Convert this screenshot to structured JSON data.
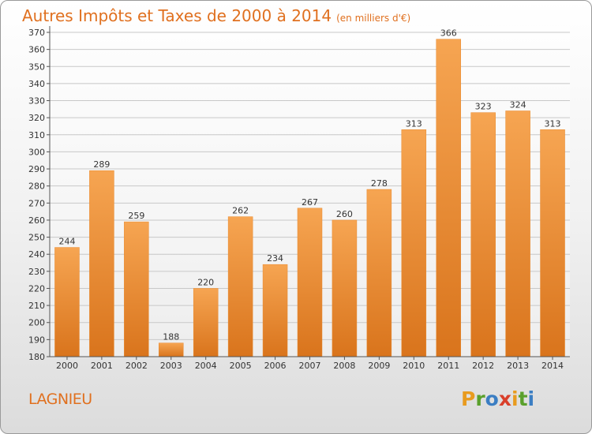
{
  "header": {
    "title": "Autres Impôts et Taxes de 2000 à 2014",
    "subtitle": "(en milliers d'€)"
  },
  "footer": {
    "commune": "LAGNIEU",
    "brand_letters": [
      "P",
      "r",
      "o",
      "x",
      "i",
      "t",
      "i"
    ],
    "brand_colors": [
      "#e89b1f",
      "#5aa02c",
      "#3b7ec3",
      "#d93f2a",
      "#e89b1f",
      "#5aa02c",
      "#3b7ec3"
    ]
  },
  "chart_data": {
    "type": "bar",
    "categories": [
      "2000",
      "2001",
      "2002",
      "2003",
      "2004",
      "2005",
      "2006",
      "2007",
      "2008",
      "2009",
      "2010",
      "2011",
      "2012",
      "2013",
      "2014"
    ],
    "values": [
      244,
      289,
      259,
      188,
      220,
      262,
      234,
      267,
      260,
      278,
      313,
      366,
      323,
      324,
      313
    ],
    "title": "Autres Impôts et Taxes de 2000 à 2014",
    "subtitle": "(en milliers d'€)",
    "xlabel": "",
    "ylabel": "",
    "ylim": [
      180,
      370
    ],
    "yticks": [
      180,
      190,
      200,
      210,
      220,
      230,
      240,
      250,
      260,
      270,
      280,
      290,
      300,
      310,
      320,
      330,
      340,
      350,
      360,
      370
    ],
    "grid": true,
    "data_labels": true,
    "bar_color": "#f2943a"
  }
}
